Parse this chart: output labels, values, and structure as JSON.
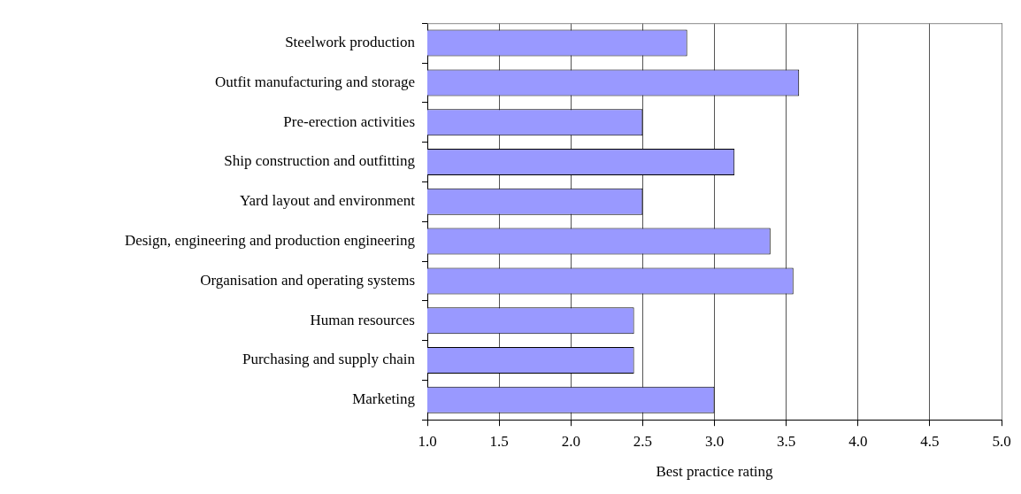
{
  "chart_data": {
    "type": "bar",
    "orientation": "horizontal",
    "xlabel": "Best practice rating",
    "categories": [
      "Steelwork production",
      "Outfit manufacturing and storage",
      "Pre-erection activities",
      "Ship construction and outfitting",
      "Yard layout and environment",
      "Design, engineering and production engineering",
      "Organisation and operating systems",
      "Human resources",
      "Purchasing and supply chain",
      "Marketing"
    ],
    "values": [
      2.81,
      3.59,
      2.5,
      3.14,
      2.5,
      3.39,
      3.55,
      2.44,
      2.44,
      3.0
    ],
    "color": "#9999ff",
    "xlim": [
      1,
      5
    ],
    "xticks": [
      {
        "value": 1,
        "label": "1.0"
      },
      {
        "value": 1.5,
        "label": "1.5"
      },
      {
        "value": 2,
        "label": "2.0"
      },
      {
        "value": 2.5,
        "label": "2.5"
      },
      {
        "value": 3,
        "label": "3.0"
      },
      {
        "value": 3.5,
        "label": "3.5"
      },
      {
        "value": 4,
        "label": "4.0"
      },
      {
        "value": 4.5,
        "label": "4.5"
      },
      {
        "value": 5,
        "label": "5.0"
      }
    ],
    "grid": "x",
    "legend": false
  }
}
